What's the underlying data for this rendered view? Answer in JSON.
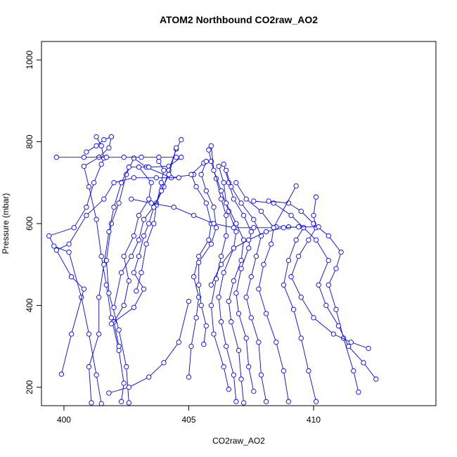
{
  "chart_data": {
    "type": "line",
    "title": "ATOM2 Northbound CO2raw_AO2",
    "xlabel": "CO2raw_AO2",
    "ylabel": "Pressure (mbar)",
    "xlim": [
      399.1,
      414.9
    ],
    "ylim": [
      1045,
      155
    ],
    "y_reversed": true,
    "x_ticks": [
      400,
      405,
      410
    ],
    "y_ticks": [
      200,
      400,
      600,
      800,
      1000
    ],
    "grid": false,
    "legend": "none",
    "marker": "open-circle",
    "color": "#0000ff",
    "series": [
      {
        "points": [
          [
            401.5,
            160
          ],
          [
            401.3,
            230
          ],
          [
            401.0,
            330
          ],
          [
            400.7,
            420
          ],
          [
            400.2,
            530
          ],
          [
            399.6,
            545
          ],
          [
            399.4,
            570
          ],
          [
            400.4,
            590
          ],
          [
            400.9,
            640
          ],
          [
            401.2,
            700
          ],
          [
            401.5,
            745
          ],
          [
            401.6,
            760
          ],
          [
            401.5,
            790
          ],
          [
            401.3,
            812
          ]
        ]
      },
      {
        "points": [
          [
            402.3,
            165
          ],
          [
            402.4,
            210
          ],
          [
            402.2,
            290
          ],
          [
            401.9,
            370
          ],
          [
            401.7,
            450
          ],
          [
            401.5,
            520
          ],
          [
            401.3,
            610
          ],
          [
            401.0,
            690
          ],
          [
            400.8,
            740
          ],
          [
            401.4,
            762
          ],
          [
            401.8,
            785
          ],
          [
            401.9,
            812
          ]
        ]
      },
      {
        "points": [
          [
            402.6,
            162
          ],
          [
            402.5,
            250
          ],
          [
            402.2,
            340
          ],
          [
            401.8,
            430
          ],
          [
            401.7,
            510
          ],
          [
            401.9,
            600
          ],
          [
            402.2,
            650
          ],
          [
            402.5,
            720
          ],
          [
            402.8,
            760
          ],
          [
            403.3,
            738
          ],
          [
            404.3,
            712
          ],
          [
            405.2,
            720
          ]
        ]
      },
      {
        "points": [
          [
            401.1,
            162
          ],
          [
            401.0,
            250
          ],
          [
            401.4,
            330
          ],
          [
            401.4,
            420
          ],
          [
            401.6,
            500
          ],
          [
            401.8,
            580
          ],
          [
            402.0,
            640
          ],
          [
            402.3,
            700
          ],
          [
            402.6,
            738
          ],
          [
            403.4,
            738
          ],
          [
            404.2,
            740
          ],
          [
            404.7,
            762
          ]
        ]
      },
      {
        "points": [
          [
            399.9,
            232
          ],
          [
            400.3,
            330
          ],
          [
            400.8,
            440
          ],
          [
            400.3,
            470
          ],
          [
            399.7,
            535
          ],
          [
            400.2,
            550
          ],
          [
            400.9,
            620
          ],
          [
            401.6,
            660
          ],
          [
            402.0,
            700
          ],
          [
            402.8,
            712
          ],
          [
            403.7,
            712
          ],
          [
            404.6,
            712
          ]
        ]
      },
      {
        "points": [
          [
            399.7,
            762
          ],
          [
            400.8,
            762
          ],
          [
            401.7,
            762
          ],
          [
            402.4,
            762
          ],
          [
            403.1,
            762
          ],
          [
            403.8,
            762
          ],
          [
            404.5,
            762
          ]
        ]
      },
      {
        "points": [
          [
            400.9,
            775
          ],
          [
            401.3,
            790
          ],
          [
            401.6,
            805
          ],
          [
            401.9,
            812
          ]
        ]
      },
      {
        "points": [
          [
            402.0,
            395
          ],
          [
            402.3,
            480
          ],
          [
            402.7,
            520
          ],
          [
            403.0,
            560
          ],
          [
            403.2,
            610
          ],
          [
            403.7,
            650
          ],
          [
            404.0,
            690
          ],
          [
            404.2,
            730
          ],
          [
            404.5,
            782
          ],
          [
            404.7,
            805
          ]
        ]
      },
      {
        "points": [
          [
            402.9,
            435
          ],
          [
            403.1,
            480
          ],
          [
            403.3,
            550
          ],
          [
            403.6,
            600
          ],
          [
            403.7,
            645
          ],
          [
            403.9,
            700
          ],
          [
            404.0,
            730
          ],
          [
            403.8,
            752
          ]
        ]
      },
      {
        "points": [
          [
            402.2,
            300
          ],
          [
            402.0,
            360
          ],
          [
            402.4,
            400
          ],
          [
            402.6,
            460
          ],
          [
            402.4,
            520
          ],
          [
            402.8,
            570
          ],
          [
            403.0,
            620
          ],
          [
            403.4,
            660
          ],
          [
            403.5,
            700
          ],
          [
            403.0,
            738
          ]
        ]
      },
      {
        "points": [
          [
            405.0,
            225
          ],
          [
            405.1,
            300
          ],
          [
            405.3,
            370
          ],
          [
            405.4,
            420
          ],
          [
            405.2,
            470
          ],
          [
            405.4,
            520
          ],
          [
            405.8,
            560
          ],
          [
            405.9,
            600
          ],
          [
            405.7,
            650
          ],
          [
            405.3,
            690
          ],
          [
            405.1,
            720
          ],
          [
            405.6,
            748
          ]
        ]
      },
      {
        "points": [
          [
            405.6,
            305
          ],
          [
            405.7,
            350
          ],
          [
            405.5,
            400
          ],
          [
            405.4,
            450
          ],
          [
            405.4,
            505
          ],
          [
            405.9,
            550
          ],
          [
            406.1,
            590
          ],
          [
            406.0,
            640
          ],
          [
            405.7,
            680
          ],
          [
            405.5,
            720
          ],
          [
            405.7,
            752
          ]
        ]
      },
      {
        "points": [
          [
            406.6,
            195
          ],
          [
            406.4,
            250
          ],
          [
            406.0,
            330
          ],
          [
            405.9,
            400
          ],
          [
            406.1,
            465
          ],
          [
            406.3,
            520
          ],
          [
            406.5,
            570
          ],
          [
            406.5,
            620
          ],
          [
            406.3,
            660
          ],
          [
            406.1,
            710
          ],
          [
            405.9,
            752
          ],
          [
            405.8,
            780
          ]
        ]
      },
      {
        "points": [
          [
            406.9,
            165
          ],
          [
            406.8,
            230
          ],
          [
            406.5,
            300
          ],
          [
            406.3,
            360
          ],
          [
            406.2,
            420
          ],
          [
            406.4,
            480
          ],
          [
            406.8,
            540
          ],
          [
            406.9,
            580
          ],
          [
            406.6,
            630
          ],
          [
            406.3,
            680
          ],
          [
            406.0,
            730
          ],
          [
            405.9,
            790
          ]
        ]
      },
      {
        "points": [
          [
            407.2,
            162
          ],
          [
            407.1,
            220
          ],
          [
            407.0,
            290
          ],
          [
            406.7,
            360
          ],
          [
            406.6,
            410
          ],
          [
            406.8,
            460
          ],
          [
            407.1,
            510
          ],
          [
            407.2,
            560
          ],
          [
            406.9,
            600
          ],
          [
            406.5,
            650
          ],
          [
            406.4,
            700
          ],
          [
            406.2,
            740
          ]
        ]
      },
      {
        "points": [
          [
            407.6,
            190
          ],
          [
            407.4,
            250
          ],
          [
            407.3,
            320
          ],
          [
            407.0,
            380
          ],
          [
            406.9,
            430
          ],
          [
            407.1,
            490
          ],
          [
            407.4,
            540
          ],
          [
            407.5,
            580
          ],
          [
            407.2,
            620
          ],
          [
            406.8,
            660
          ],
          [
            406.6,
            700
          ],
          [
            406.4,
            745
          ]
        ]
      },
      {
        "points": [
          [
            408.1,
            165
          ],
          [
            407.9,
            230
          ],
          [
            407.8,
            310
          ],
          [
            407.5,
            370
          ],
          [
            407.3,
            420
          ],
          [
            407.5,
            470
          ],
          [
            407.7,
            520
          ],
          [
            407.9,
            570
          ],
          [
            407.6,
            610
          ],
          [
            407.1,
            650
          ],
          [
            406.7,
            690
          ],
          [
            406.5,
            730
          ]
        ]
      },
      {
        "points": [
          [
            409.0,
            165
          ],
          [
            408.8,
            240
          ],
          [
            408.5,
            310
          ],
          [
            408.1,
            380
          ],
          [
            407.8,
            440
          ],
          [
            408.0,
            500
          ],
          [
            408.3,
            550
          ],
          [
            408.4,
            590
          ],
          [
            407.9,
            630
          ],
          [
            407.3,
            660
          ],
          [
            406.9,
            700
          ]
        ]
      },
      {
        "points": [
          [
            410.1,
            165
          ],
          [
            409.8,
            240
          ],
          [
            409.5,
            320
          ],
          [
            409.2,
            390
          ],
          [
            408.8,
            450
          ],
          [
            409.0,
            510
          ],
          [
            409.3,
            560
          ],
          [
            409.6,
            590
          ],
          [
            409.1,
            620
          ],
          [
            408.4,
            650
          ],
          [
            407.6,
            655
          ]
        ]
      },
      {
        "points": [
          [
            411.8,
            188
          ],
          [
            411.6,
            240
          ],
          [
            411.2,
            320
          ],
          [
            410.9,
            390
          ],
          [
            410.6,
            450
          ],
          [
            410.9,
            490
          ],
          [
            411.1,
            530
          ],
          [
            410.6,
            570
          ],
          [
            410.0,
            600
          ],
          [
            409.5,
            630
          ],
          [
            409.0,
            650
          ],
          [
            408.2,
            655
          ]
        ]
      },
      {
        "points": [
          [
            412.5,
            220
          ],
          [
            412.0,
            260
          ],
          [
            411.4,
            300
          ],
          [
            411.0,
            350
          ],
          [
            410.5,
            400
          ],
          [
            410.2,
            450
          ],
          [
            410.6,
            510
          ],
          [
            410.1,
            560
          ],
          [
            409.6,
            590
          ],
          [
            409.0,
            592
          ],
          [
            408.5,
            592
          ]
        ]
      },
      {
        "points": [
          [
            412.2,
            295
          ],
          [
            411.5,
            310
          ],
          [
            410.8,
            330
          ],
          [
            410.0,
            370
          ],
          [
            409.5,
            420
          ],
          [
            409.1,
            470
          ],
          [
            409.4,
            520
          ],
          [
            409.8,
            560
          ],
          [
            410.1,
            590
          ],
          [
            410.0,
            620
          ],
          [
            410.1,
            665
          ]
        ]
      },
      {
        "points": [
          [
            405.9,
            450
          ],
          [
            406.3,
            500
          ],
          [
            406.8,
            540
          ],
          [
            407.4,
            560
          ],
          [
            408.1,
            580
          ],
          [
            408.8,
            590
          ],
          [
            409.4,
            592
          ],
          [
            410.2,
            592
          ]
        ]
      },
      {
        "points": [
          [
            402.7,
            660
          ],
          [
            403.5,
            650
          ],
          [
            404.4,
            640
          ],
          [
            405.2,
            620
          ],
          [
            406.0,
            600
          ],
          [
            406.8,
            590
          ],
          [
            407.6,
            590
          ],
          [
            408.4,
            590
          ],
          [
            409.3,
            692
          ]
        ]
      },
      {
        "points": [
          [
            401.8,
            186
          ],
          [
            402.6,
            200
          ],
          [
            403.4,
            225
          ],
          [
            404.0,
            260
          ],
          [
            404.6,
            310
          ],
          [
            405.0,
            410
          ]
        ]
      },
      {
        "points": [
          [
            401.9,
            355
          ],
          [
            402.8,
            395
          ],
          [
            403.2,
            440
          ],
          [
            402.8,
            480
          ],
          [
            403.0,
            520
          ],
          [
            403.2,
            570
          ],
          [
            403.4,
            600
          ],
          [
            403.6,
            640
          ],
          [
            403.9,
            680
          ],
          [
            404.2,
            720
          ],
          [
            404.5,
            785
          ]
        ]
      }
    ]
  }
}
